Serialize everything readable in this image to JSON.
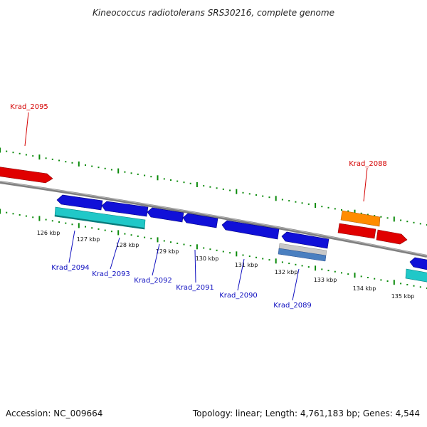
{
  "title": "Kineococcus radiotolerans SRS30216, complete genome",
  "footer": {
    "accession": "Accession: NC_009664",
    "summary": "Topology: linear; Length: 4,761,183 bp; Genes: 4,544"
  },
  "colors": {
    "backbone": "#808080",
    "tick_green": "#0a8a0a",
    "gene_red": "#e00000",
    "gene_blue": "#1010d8",
    "gene_cyan": "#20c8c8",
    "gene_orange": "#ff8c00",
    "gene_gray": "#c0c0c0",
    "gene_steel": "#4a7fc0",
    "label_red": "#d40000",
    "label_blue": "#1010c0"
  },
  "ticks": [
    {
      "label": "126 kbp"
    },
    {
      "label": "127 kbp"
    },
    {
      "label": "128 kbp"
    },
    {
      "label": "129 kbp"
    },
    {
      "label": "130 kbp"
    },
    {
      "label": "131 kbp"
    },
    {
      "label": "132 kbp"
    },
    {
      "label": "133 kbp"
    },
    {
      "label": "134 kbp"
    },
    {
      "label": "135 kbp"
    }
  ],
  "gene_labels": [
    {
      "text": "Krad_2095",
      "color": "red"
    },
    {
      "text": "Krad_2088",
      "color": "red"
    },
    {
      "text": "Krad_2094",
      "color": "blue"
    },
    {
      "text": "Krad_2093",
      "color": "blue"
    },
    {
      "text": "Krad_2092",
      "color": "blue"
    },
    {
      "text": "Krad_2091",
      "color": "blue"
    },
    {
      "text": "Krad_2090",
      "color": "blue"
    },
    {
      "text": "Krad_2089",
      "color": "blue"
    }
  ]
}
